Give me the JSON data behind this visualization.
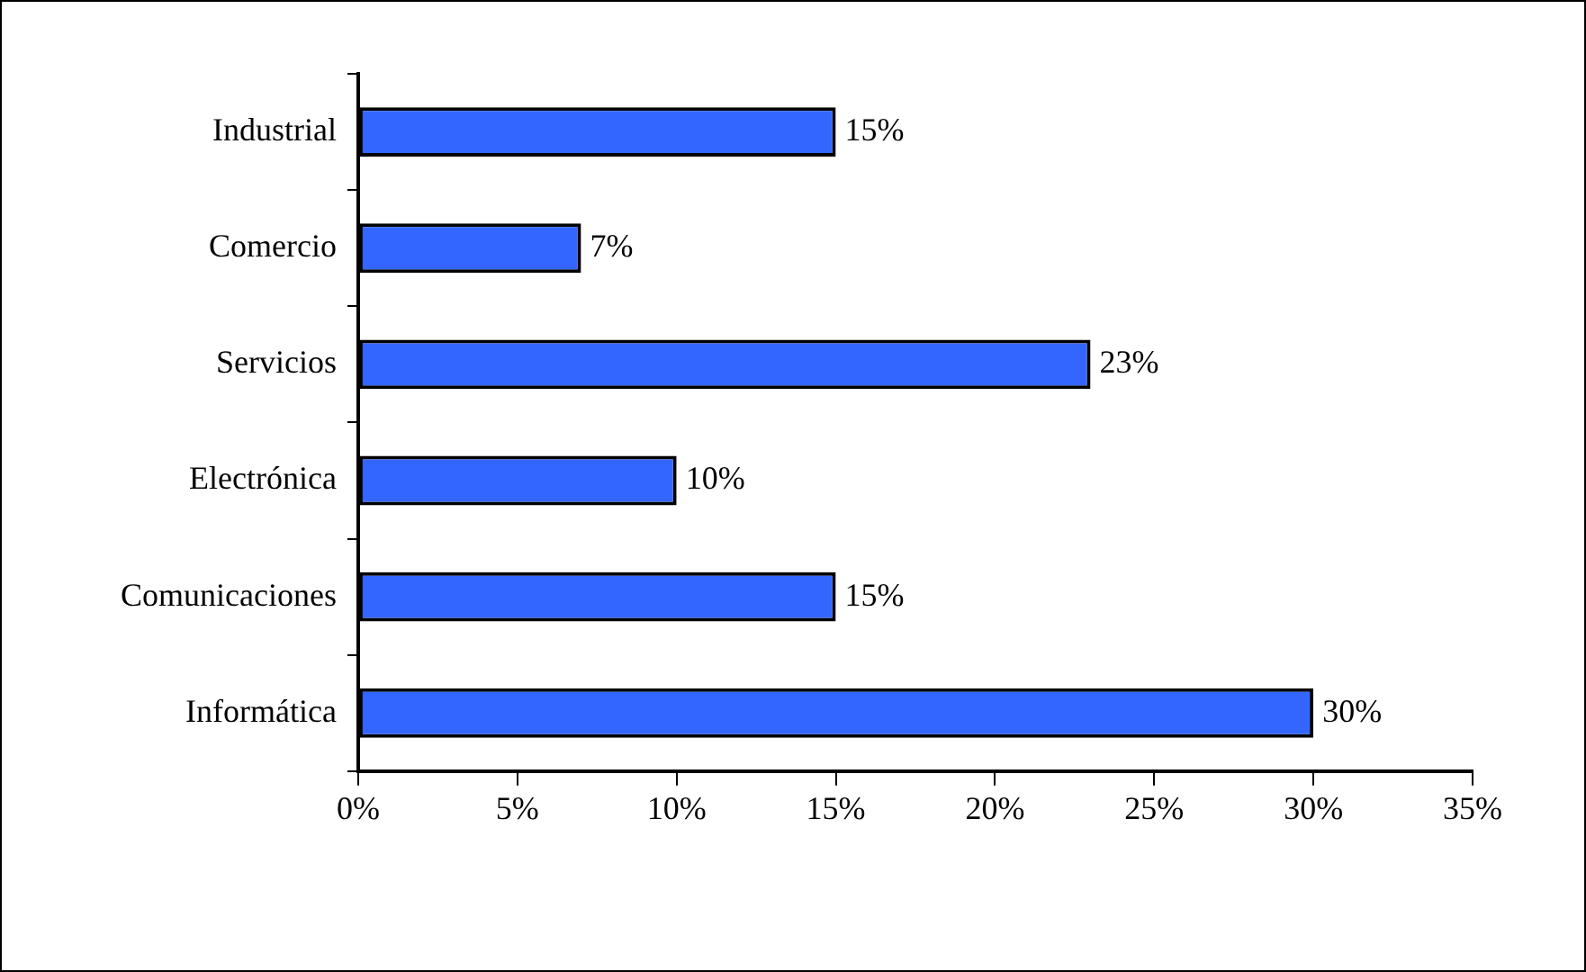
{
  "chart_data": {
    "type": "bar",
    "orientation": "horizontal",
    "categories": [
      "Industrial",
      "Comercio",
      "Servicios",
      "Electrónica",
      "Comunicaciones",
      "Informática"
    ],
    "values": [
      15,
      7,
      23,
      10,
      15,
      30
    ],
    "color": "#3366ff",
    "value_labels": [
      "15%",
      "7%",
      "23%",
      "10%",
      "15%",
      "30%"
    ],
    "xlim": [
      0,
      35
    ],
    "xticks": [
      {
        "value": 0,
        "label": "0%"
      },
      {
        "value": 5,
        "label": "5%"
      },
      {
        "value": 10,
        "label": "10%"
      },
      {
        "value": 15,
        "label": "15%"
      },
      {
        "value": 20,
        "label": "20%"
      },
      {
        "value": 25,
        "label": "25%"
      },
      {
        "value": 30,
        "label": "30%"
      },
      {
        "value": 35,
        "label": "35%"
      }
    ],
    "grid": false,
    "legend": false
  }
}
